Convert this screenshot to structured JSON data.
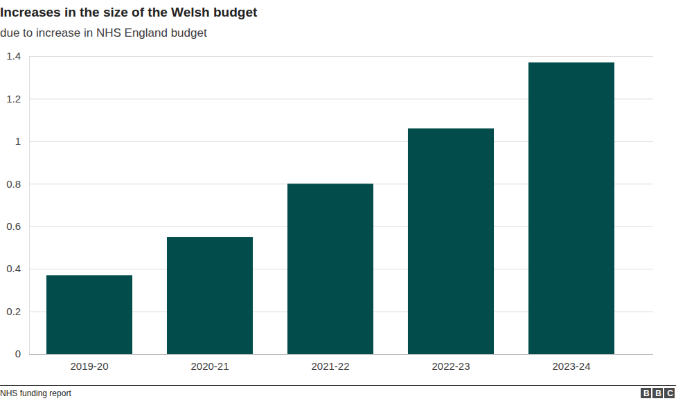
{
  "chart_data": {
    "type": "bar",
    "title": "Increases in the size of the Welsh budget",
    "subtitle": "due to increase in NHS England budget",
    "source": "NHS funding report",
    "logo": "BBC",
    "categories": [
      "2019-20",
      "2020-21",
      "2021-22",
      "2022-23",
      "2023-24"
    ],
    "values": [
      0.37,
      0.55,
      0.8,
      1.06,
      1.37
    ],
    "color": "#024d4c",
    "ylim": [
      0,
      1.4
    ],
    "yticks": [
      0,
      0.2,
      0.4,
      0.6,
      0.8,
      1,
      1.2,
      1.4
    ],
    "grid": true
  }
}
